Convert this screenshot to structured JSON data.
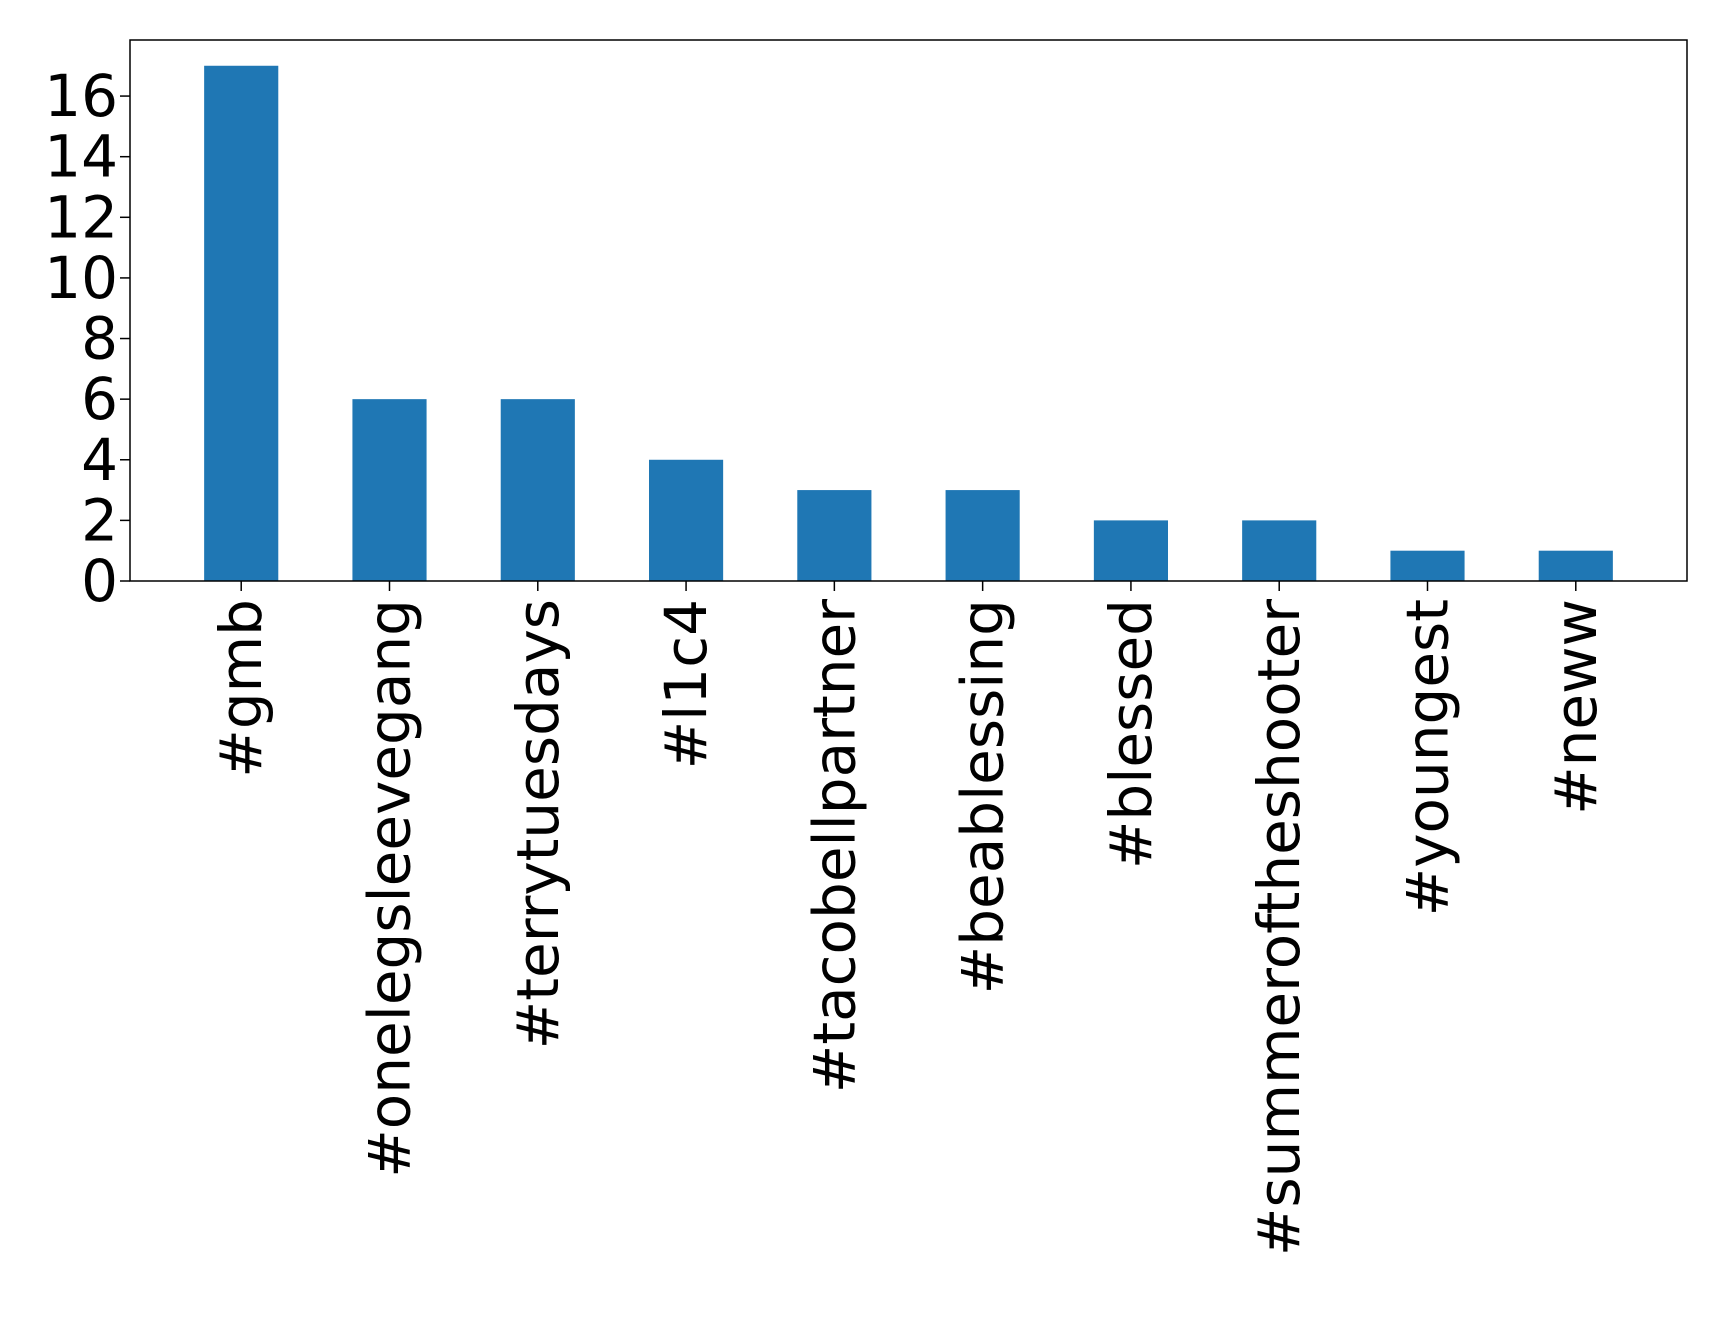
{
  "chart_data": {
    "type": "bar",
    "title": "",
    "xlabel": "",
    "ylabel": "",
    "categories": [
      "#gmb",
      "#onelegsleevegang",
      "#terrytuesdays",
      "#l1c4",
      "#tacobellpartner",
      "#beablessing",
      "#blessed",
      "#summeroftheshooter",
      "#youngest",
      "#neww"
    ],
    "values": [
      17,
      6,
      6,
      4,
      3,
      3,
      2,
      2,
      1,
      1
    ],
    "ylim": [
      0,
      17.85
    ],
    "yticks": [
      0,
      2,
      4,
      6,
      8,
      10,
      12,
      14,
      16
    ],
    "grid": false,
    "legend": "none",
    "colors": {
      "bar": "#1f77b4",
      "axis": "#000000",
      "background": "#ffffff"
    }
  }
}
